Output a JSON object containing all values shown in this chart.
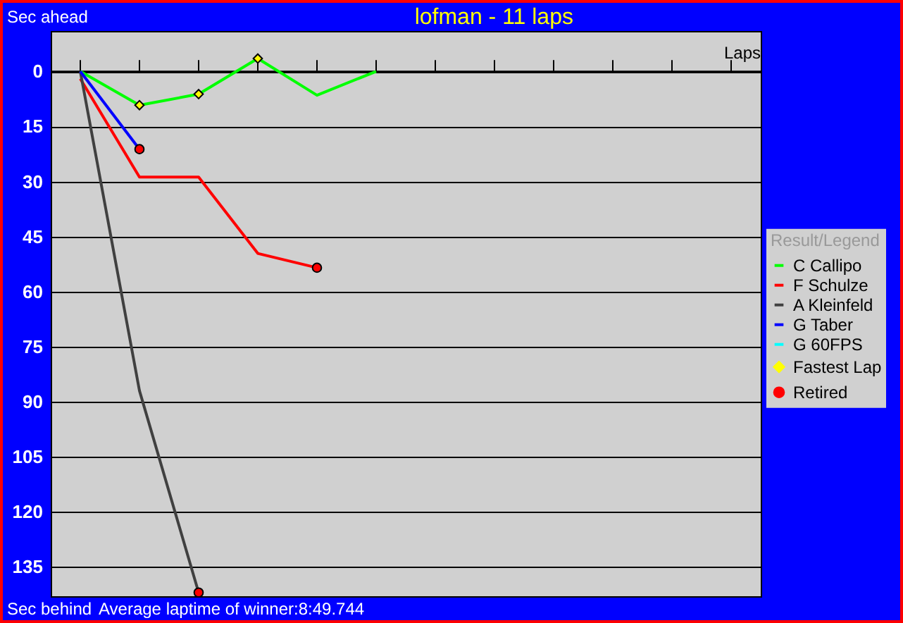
{
  "chart_data": {
    "type": "line",
    "title": "lofman - 11 laps",
    "ylabel": "Sec ahead",
    "xlabel": "Laps",
    "legend_title": "Result/Legend",
    "annotations": [
      "Sec behind",
      "Average laptime of winner:8:49.744"
    ],
    "categories": [
      null,
      null,
      null,
      null,
      null,
      null,
      null,
      null,
      null,
      null,
      null,
      null
    ],
    "ylim": [
      143,
      -11
    ],
    "yticks": [
      0,
      15,
      30,
      45,
      60,
      75,
      90,
      105,
      120,
      135
    ],
    "grid": "y",
    "legend": "right",
    "series": [
      {
        "name": "C Callipo",
        "color": "#00ff00",
        "values": [
          0,
          9.2,
          6.2,
          -3.5,
          6.5,
          0,
          null,
          null,
          null,
          null,
          null,
          null
        ]
      },
      {
        "name": "F Schulze",
        "color": "#ff0000",
        "values": [
          2,
          28.8,
          28.8,
          49.6,
          53.5,
          null,
          null,
          null,
          null,
          null,
          null,
          null
        ]
      },
      {
        "name": "A Kleinfeld",
        "color": "#404040",
        "values": [
          0,
          87,
          142,
          null,
          null,
          null,
          null,
          null,
          null,
          null,
          null,
          null
        ]
      },
      {
        "name": "G Taber",
        "color": "#0000ff",
        "values": [
          0,
          21.2,
          null,
          null,
          null,
          null,
          null,
          null,
          null,
          null,
          null,
          null
        ]
      },
      {
        "name": "G 60FPS",
        "color": "#00ffff",
        "values": [
          null,
          null,
          null,
          null,
          null,
          null,
          null,
          null,
          null,
          null,
          null,
          null
        ]
      },
      {
        "name": "Fastest Lap",
        "type": "scatter",
        "marker": "diamond",
        "color": "#ffff00",
        "values": [
          null,
          9.2,
          6.2,
          -3.5,
          null,
          null,
          null,
          null,
          null,
          null,
          null,
          null
        ]
      },
      {
        "name": "Retired",
        "type": "scatter",
        "marker": "circle",
        "color": "#ff0000",
        "values": [
          null,
          21.2,
          142,
          null,
          53.5,
          null,
          null,
          null,
          null,
          null,
          null,
          null
        ]
      }
    ]
  }
}
